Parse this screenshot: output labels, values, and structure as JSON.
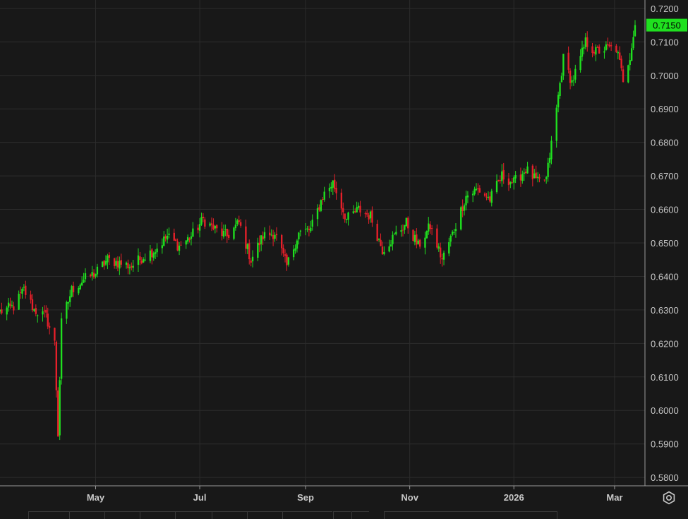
{
  "chart_data": {
    "type": "candlestick",
    "title": "",
    "xlabel": "",
    "ylabel": "",
    "ylim": [
      0.5775,
      0.7225
    ],
    "grid": true,
    "colors": {
      "up": "#1fe01f",
      "down": "#e8202a",
      "background": "#181818",
      "grid": "#2c2c2c",
      "axis_text": "#c8c8c8",
      "last_price_bg": "#1fe01f"
    },
    "y_ticks": [
      "0.7200",
      "0.7100",
      "0.7000",
      "0.6900",
      "0.6800",
      "0.6700",
      "0.6600",
      "0.6500",
      "0.6400",
      "0.6300",
      "0.6200",
      "0.6100",
      "0.6000",
      "0.5900",
      "0.5800"
    ],
    "x_ticks": [
      {
        "label": "May",
        "date": "2025-05-01"
      },
      {
        "label": "Jul",
        "date": "2025-07-01"
      },
      {
        "label": "Sep",
        "date": "2025-09-01"
      },
      {
        "label": "Nov",
        "date": "2025-11-01"
      },
      {
        "label": "2026",
        "date": "2026-01-01"
      },
      {
        "label": "Mar",
        "date": "2026-03-01"
      }
    ],
    "x_range": [
      "2025-03-06",
      "2026-03-13"
    ],
    "last_price": "0.7150",
    "series_points": [
      [
        "2025-03-06",
        0.6295
      ],
      [
        "2025-03-14",
        0.631
      ],
      [
        "2025-03-20",
        0.636
      ],
      [
        "2025-03-26",
        0.63
      ],
      [
        "2025-04-02",
        0.628
      ],
      [
        "2025-04-07",
        0.62
      ],
      [
        "2025-04-09",
        0.593
      ],
      [
        "2025-04-11",
        0.626
      ],
      [
        "2025-04-17",
        0.636
      ],
      [
        "2025-04-24",
        0.639
      ],
      [
        "2025-05-01",
        0.641
      ],
      [
        "2025-05-08",
        0.645
      ],
      [
        "2025-05-15",
        0.644
      ],
      [
        "2025-05-22",
        0.643
      ],
      [
        "2025-05-29",
        0.646
      ],
      [
        "2025-06-05",
        0.648
      ],
      [
        "2025-06-12",
        0.652
      ],
      [
        "2025-06-19",
        0.649
      ],
      [
        "2025-06-26",
        0.652
      ],
      [
        "2025-07-03",
        0.657
      ],
      [
        "2025-07-10",
        0.654
      ],
      [
        "2025-07-17",
        0.652
      ],
      [
        "2025-07-24",
        0.656
      ],
      [
        "2025-07-31",
        0.645
      ],
      [
        "2025-08-07",
        0.652
      ],
      [
        "2025-08-14",
        0.653
      ],
      [
        "2025-08-21",
        0.643
      ],
      [
        "2025-08-28",
        0.653
      ],
      [
        "2025-09-04",
        0.654
      ],
      [
        "2025-09-11",
        0.664
      ],
      [
        "2025-09-17",
        0.668
      ],
      [
        "2025-09-25",
        0.657
      ],
      [
        "2025-10-02",
        0.66
      ],
      [
        "2025-10-09",
        0.658
      ],
      [
        "2025-10-16",
        0.648
      ],
      [
        "2025-10-23",
        0.652
      ],
      [
        "2025-10-30",
        0.656
      ],
      [
        "2025-11-06",
        0.649
      ],
      [
        "2025-11-13",
        0.655
      ],
      [
        "2025-11-20",
        0.645
      ],
      [
        "2025-11-27",
        0.654
      ],
      [
        "2025-12-04",
        0.664
      ],
      [
        "2025-12-11",
        0.666
      ],
      [
        "2025-12-18",
        0.663
      ],
      [
        "2025-12-25",
        0.67
      ],
      [
        "2026-01-01",
        0.668
      ],
      [
        "2026-01-08",
        0.672
      ],
      [
        "2026-01-15",
        0.668
      ],
      [
        "2026-01-20",
        0.669
      ],
      [
        "2026-01-26",
        0.69
      ],
      [
        "2026-01-30",
        0.705
      ],
      [
        "2026-02-04",
        0.698
      ],
      [
        "2026-02-09",
        0.705
      ],
      [
        "2026-02-12",
        0.71
      ],
      [
        "2026-02-18",
        0.707
      ],
      [
        "2026-02-24",
        0.708
      ],
      [
        "2026-03-02",
        0.708
      ],
      [
        "2026-03-06",
        0.699
      ],
      [
        "2026-03-10",
        0.706
      ],
      [
        "2026-03-13",
        0.715
      ]
    ]
  },
  "ui": {
    "settings_icon": "settings-gear-icon"
  }
}
